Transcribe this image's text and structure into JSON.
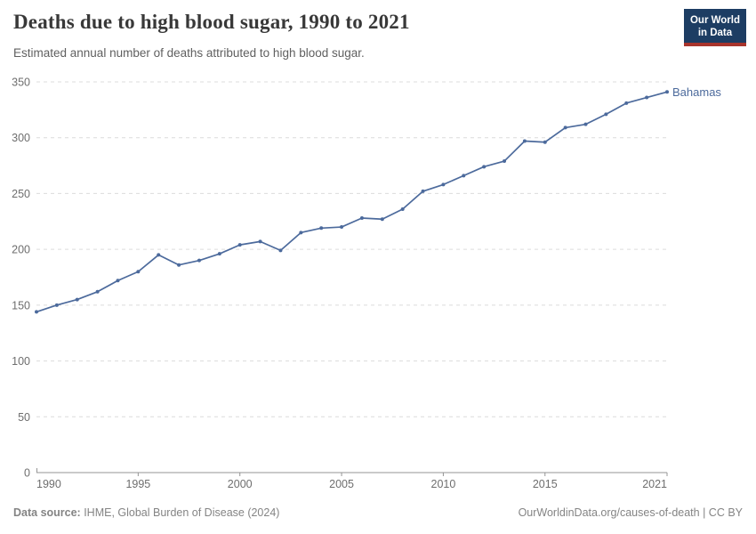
{
  "header": {
    "title": "Deaths due to high blood sugar, 1990 to 2021",
    "subtitle": "Estimated annual number of deaths attributed to high blood sugar."
  },
  "logo": {
    "line1": "Our World",
    "line2": "in Data",
    "bg_color": "#1d3d63",
    "accent_color": "#a8342c",
    "text_color": "#ffffff"
  },
  "chart_data": {
    "type": "line",
    "title": "Deaths due to high blood sugar, 1990 to 2021",
    "xlabel": "",
    "ylabel": "",
    "ylim": [
      0,
      350
    ],
    "ytick_interval": 50,
    "yticks": [
      0,
      50,
      100,
      150,
      200,
      250,
      300,
      350
    ],
    "xticks": [
      1990,
      1995,
      2000,
      2005,
      2010,
      2015,
      2021
    ],
    "grid": "horizontal-dashed",
    "legend_position": "end-of-line-label",
    "x": [
      1990,
      1991,
      1992,
      1993,
      1994,
      1995,
      1996,
      1997,
      1998,
      1999,
      2000,
      2001,
      2002,
      2003,
      2004,
      2005,
      2006,
      2007,
      2008,
      2009,
      2010,
      2011,
      2012,
      2013,
      2014,
      2015,
      2016,
      2017,
      2018,
      2019,
      2020,
      2021
    ],
    "series": [
      {
        "name": "Bahamas",
        "color": "#4C6A9C",
        "values": [
          144,
          150,
          155,
          162,
          172,
          180,
          195,
          186,
          190,
          196,
          204,
          207,
          199,
          215,
          219,
          220,
          228,
          227,
          236,
          252,
          258,
          266,
          274,
          279,
          297,
          296,
          309,
          312,
          321,
          331,
          336,
          341
        ]
      }
    ],
    "axis_color": "#949494",
    "gridline_color": "#dcdcdc",
    "tick_label_color": "#6e6e6e"
  },
  "footer": {
    "source_label": "Data source:",
    "source_text": " IHME, Global Burden of Disease (2024)",
    "credit": "OurWorldinData.org/causes-of-death | CC BY"
  }
}
